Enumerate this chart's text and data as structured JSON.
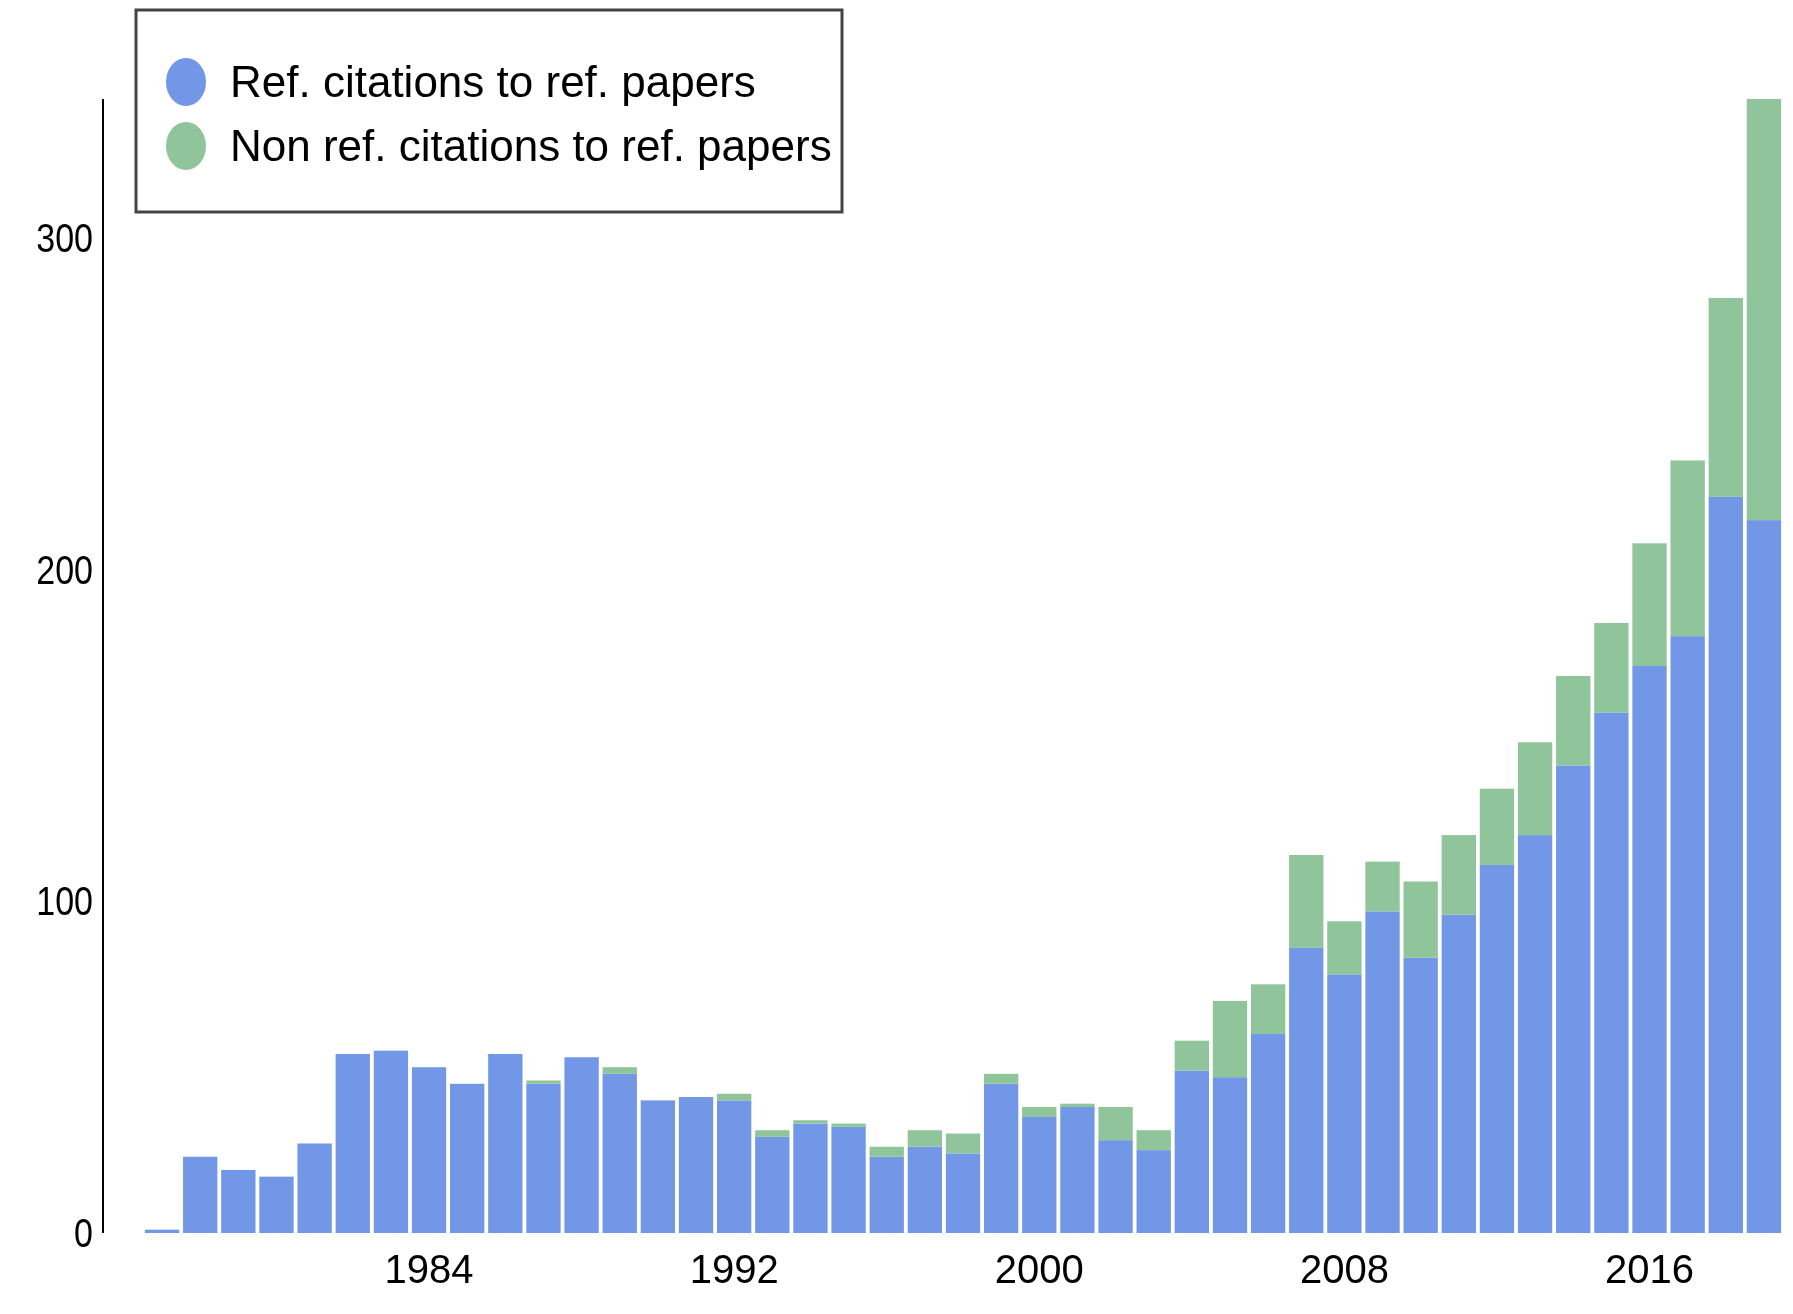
{
  "chart_data": {
    "type": "bar",
    "stacked": true,
    "categories": [
      null,
      null,
      null,
      null,
      null,
      null,
      null,
      "1984",
      null,
      null,
      null,
      null,
      null,
      null,
      null,
      "1992",
      null,
      null,
      null,
      null,
      null,
      null,
      null,
      "2000",
      null,
      null,
      null,
      null,
      null,
      null,
      null,
      "2008",
      null,
      null,
      null,
      null,
      null,
      null,
      null,
      "2016",
      null,
      null,
      null
    ],
    "series": [
      {
        "name": "Ref. citations to ref. papers",
        "color": "#7297e6",
        "values": [
          1,
          23,
          19,
          17,
          27,
          54,
          55,
          50,
          45,
          54,
          45,
          53,
          48,
          40,
          41,
          40,
          29,
          33,
          32,
          23,
          26,
          24,
          45,
          35,
          38,
          28,
          25,
          49,
          47,
          60,
          86,
          78,
          97,
          83,
          96,
          111,
          120,
          141,
          157,
          171,
          180,
          222,
          215
        ]
      },
      {
        "name": "Non ref. citations to ref. papers",
        "color": "#90c49b",
        "values": [
          0,
          0,
          0,
          0,
          0,
          0,
          0,
          0,
          0,
          0,
          1,
          0,
          2,
          0,
          0,
          2,
          2,
          1,
          1,
          3,
          5,
          6,
          3,
          3,
          1,
          10,
          6,
          9,
          23,
          15,
          28,
          16,
          15,
          23,
          24,
          23,
          28,
          27,
          27,
          37,
          53,
          60,
          127
        ]
      }
    ],
    "ylim": [
      0,
      342
    ],
    "yticks": [
      0,
      100,
      200,
      300
    ],
    "grid": false,
    "legend": "top left"
  }
}
